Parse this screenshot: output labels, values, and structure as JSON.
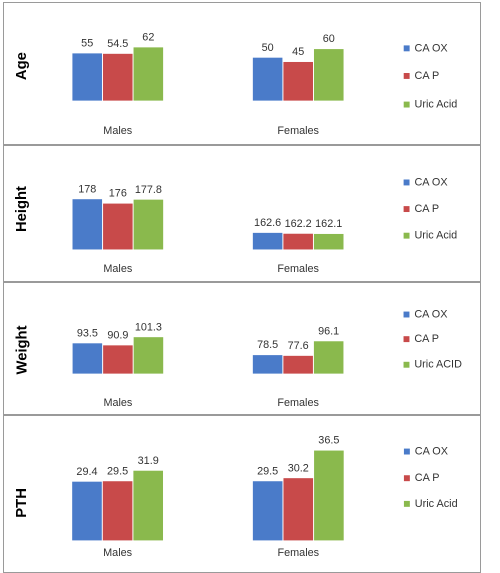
{
  "chart_data": [
    {
      "type": "bar",
      "ylabel": "Age",
      "categories": [
        "Males",
        "Females"
      ],
      "series": [
        {
          "name": "CA OX",
          "values": [
            55,
            50
          ],
          "labels": [
            "55",
            "50"
          ]
        },
        {
          "name": "CA P",
          "values": [
            54.5,
            45
          ],
          "labels": [
            "54.5",
            "45"
          ]
        },
        {
          "name": "Uric Acid",
          "values": [
            62,
            60
          ],
          "labels": [
            "62",
            "60"
          ]
        }
      ],
      "ylim": [
        0,
        62
      ],
      "grid": false,
      "legend": "right"
    },
    {
      "type": "bar",
      "ylabel": "Height",
      "categories": [
        "Males",
        "Females"
      ],
      "series": [
        {
          "name": "CA OX",
          "values": [
            178,
            162.6
          ],
          "labels": [
            "178",
            "162.6"
          ]
        },
        {
          "name": "CA P",
          "values": [
            176,
            162.2
          ],
          "labels": [
            "176",
            "162.2"
          ]
        },
        {
          "name": "Uric Acid",
          "values": [
            177.8,
            162.1
          ],
          "labels": [
            "177.8",
            "162.1"
          ]
        }
      ],
      "ylim": [
        155,
        178
      ],
      "grid": false,
      "legend": "right"
    },
    {
      "type": "bar",
      "ylabel": "Weight",
      "categories": [
        "Males",
        "Females"
      ],
      "series": [
        {
          "name": "CA OX",
          "values": [
            93.5,
            78.5
          ],
          "labels": [
            "93.5",
            "78.5"
          ]
        },
        {
          "name": "CA P",
          "values": [
            90.9,
            77.6
          ],
          "labels": [
            "90.9",
            "77.6"
          ]
        },
        {
          "name": "Uric ACID",
          "values": [
            101.3,
            96.1
          ],
          "labels": [
            "101.3",
            "96.1"
          ]
        }
      ],
      "ylim": [
        55,
        101.3
      ],
      "grid": false,
      "legend": "right"
    },
    {
      "type": "bar",
      "ylabel": "PTH",
      "categories": [
        "Males",
        "Females"
      ],
      "series": [
        {
          "name": "CA OX",
          "values": [
            29.4,
            29.5
          ],
          "labels": [
            "29.4",
            "29.5"
          ]
        },
        {
          "name": "CA P",
          "values": [
            29.5,
            30.2
          ],
          "labels": [
            "29.5",
            "30.2"
          ]
        },
        {
          "name": "Uric Acid",
          "values": [
            31.9,
            36.5
          ],
          "labels": [
            "31.9",
            "36.5"
          ]
        }
      ],
      "ylim": [
        16,
        36.5
      ],
      "grid": false,
      "legend": "right"
    }
  ],
  "colors": [
    "#4a7bc9",
    "#c84a4a",
    "#8ab94d"
  ]
}
